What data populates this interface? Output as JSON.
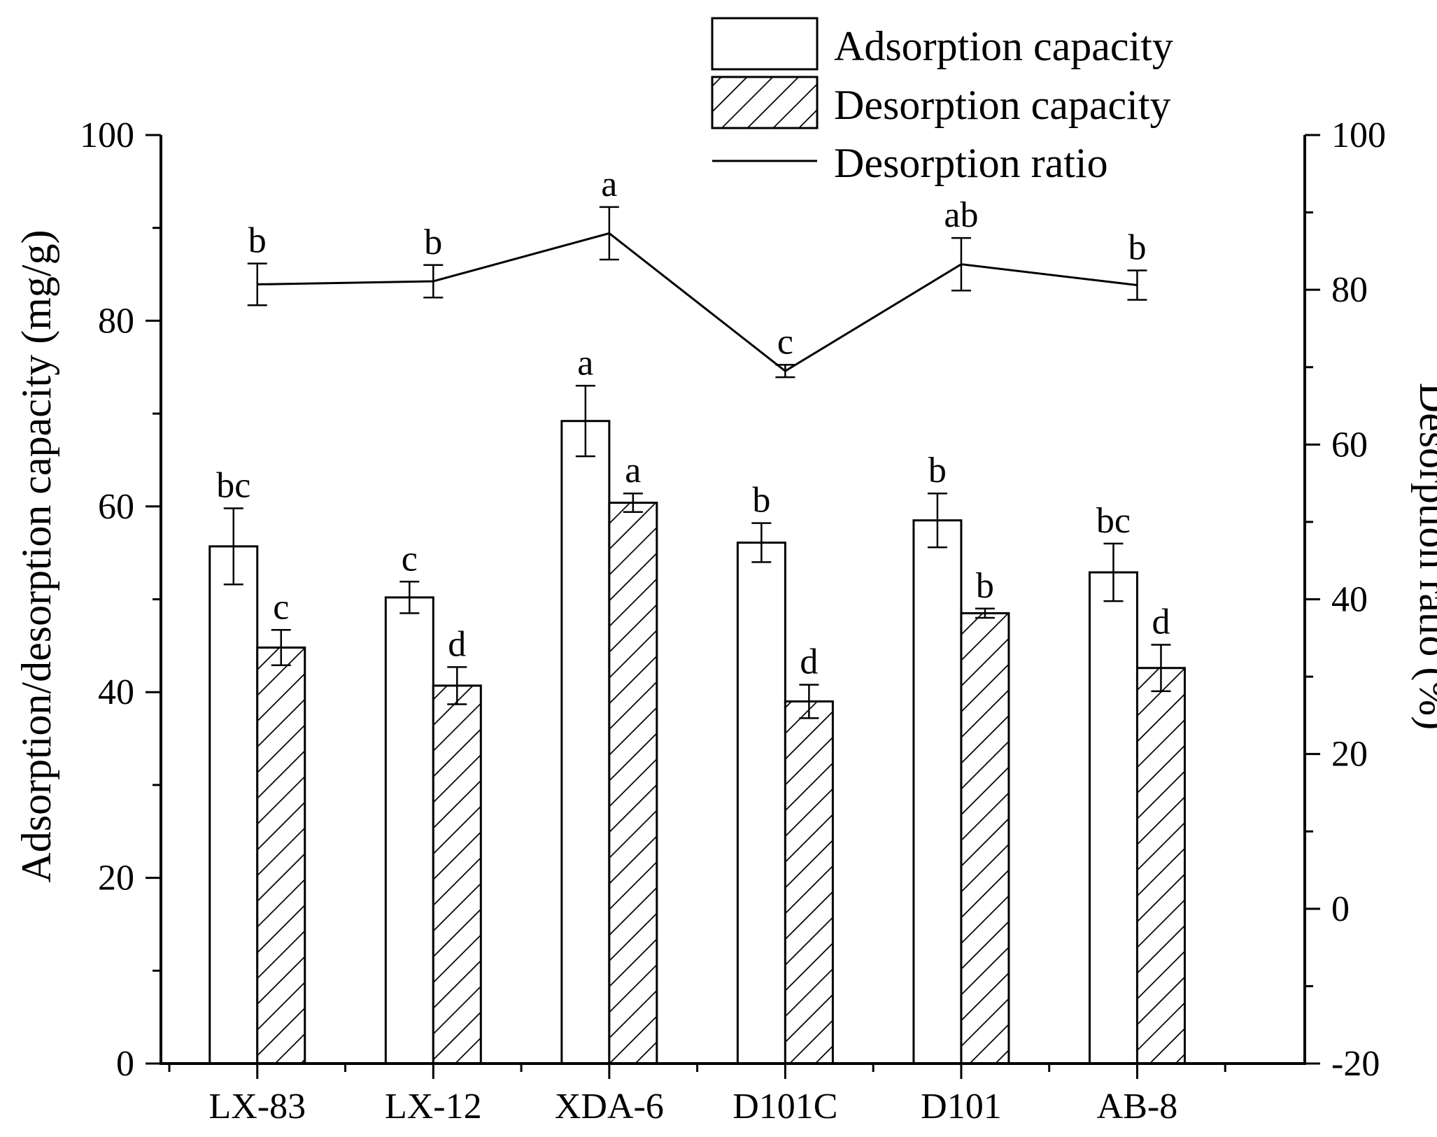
{
  "chart_data": {
    "type": "bar",
    "categories": [
      "LX-83",
      "LX-12",
      "XDA-6",
      "D101C",
      "D101",
      "AB-8"
    ],
    "series": [
      {
        "name": "Adsorption capacity",
        "style": "open",
        "values": [
          55.7,
          50.2,
          69.2,
          56.1,
          58.5,
          52.9
        ],
        "errors": [
          4.1,
          1.7,
          3.8,
          2.1,
          2.9,
          3.1
        ],
        "letters": [
          "bc",
          "c",
          "a",
          "b",
          "b",
          "bc"
        ]
      },
      {
        "name": "Desorption capacity",
        "style": "hatched",
        "values": [
          44.8,
          40.7,
          60.4,
          39.0,
          48.5,
          42.6
        ],
        "errors": [
          1.9,
          2.0,
          1.0,
          1.8,
          0.5,
          2.5
        ],
        "letters": [
          "c",
          "d",
          "a",
          "d",
          "b",
          "d"
        ]
      }
    ],
    "line_series": {
      "name": "Desorption ratio",
      "axis": "right",
      "values": [
        80.7,
        81.1,
        87.3,
        69.5,
        83.3,
        80.6
      ],
      "errors": [
        2.7,
        2.1,
        3.4,
        0.8,
        3.4,
        1.9
      ],
      "letters": [
        "b",
        "b",
        "a",
        "c",
        "ab",
        "b"
      ]
    },
    "ylabel": "Adsorption/desorption capacity (mg/g)",
    "ylabel_right": "Desorption ratio (%)",
    "ylim": [
      0,
      100
    ],
    "yticks": [
      0,
      20,
      40,
      60,
      80,
      100
    ],
    "ylim_right": [
      -20,
      100
    ],
    "yticks_right": [
      -20,
      0,
      20,
      40,
      60,
      80,
      100
    ],
    "legend": [
      "Adsorption capacity",
      "Desorption capacity",
      "Desorption ratio"
    ],
    "legend_position": "top-right",
    "grid": false
  }
}
